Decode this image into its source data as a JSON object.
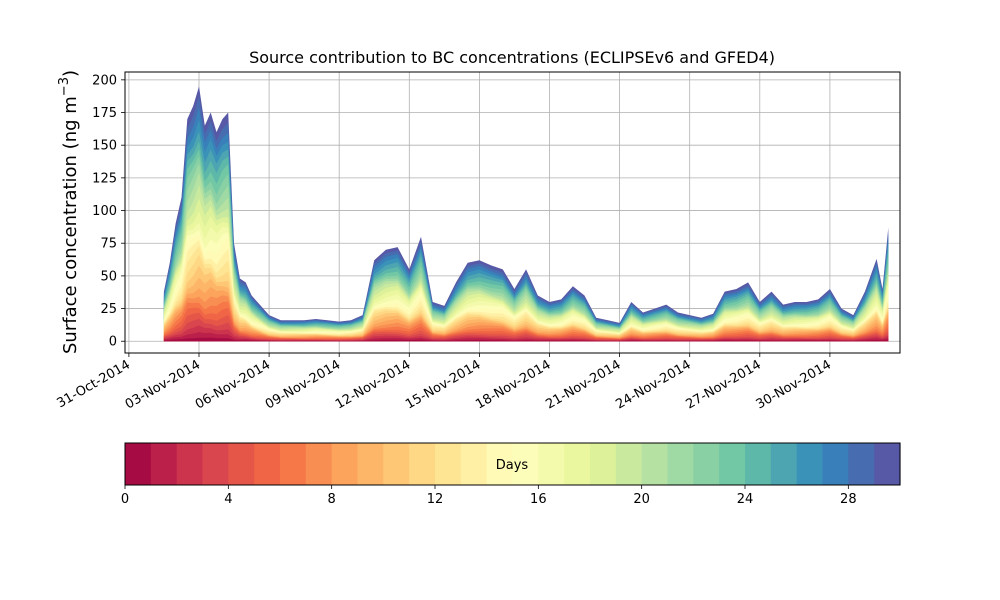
{
  "chart_data": {
    "type": "area",
    "stacked": true,
    "title": "Source contribution to BC concentrations (ECLIPSEv6 and GFED4)",
    "ylabel": "Surface concentration (ng m",
    "ylabel_superscript": "−3",
    "ylabel_close": ")",
    "ylim": [
      -9,
      206
    ],
    "yticks": [
      0,
      25,
      50,
      75,
      100,
      125,
      150,
      175,
      200
    ],
    "xticks": [
      "31-Oct-2014",
      "03-Nov-2014",
      "06-Nov-2014",
      "09-Nov-2014",
      "12-Nov-2014",
      "15-Nov-2014",
      "18-Nov-2014",
      "21-Nov-2014",
      "24-Nov-2014",
      "27-Nov-2014",
      "30-Nov-2014"
    ],
    "grid": true,
    "x_start": "2014-11-01 12:00",
    "x_end": "2014-12-02 12:00",
    "series_count": 30,
    "total_profile": {
      "time": [
        "2014-11-01 12:00",
        "2014-11-01 18:00",
        "2014-11-02 00:00",
        "2014-11-02 06:00",
        "2014-11-02 12:00",
        "2014-11-02 18:00",
        "2014-11-03 00:00",
        "2014-11-03 06:00",
        "2014-11-03 12:00",
        "2014-11-03 18:00",
        "2014-11-04 00:00",
        "2014-11-04 06:00",
        "2014-11-04 12:00",
        "2014-11-04 18:00",
        "2014-11-05 00:00",
        "2014-11-05 06:00",
        "2014-11-05 12:00",
        "2014-11-05 18:00",
        "2014-11-06 00:00",
        "2014-11-06 12:00",
        "2014-11-07 00:00",
        "2014-11-07 12:00",
        "2014-11-08 00:00",
        "2014-11-08 12:00",
        "2014-11-09 00:00",
        "2014-11-09 12:00",
        "2014-11-10 00:00",
        "2014-11-10 12:00",
        "2014-11-11 00:00",
        "2014-11-11 12:00",
        "2014-11-12 00:00",
        "2014-11-12 12:00",
        "2014-11-13 00:00",
        "2014-11-13 12:00",
        "2014-11-14 00:00",
        "2014-11-14 12:00",
        "2014-11-15 00:00",
        "2014-11-15 12:00",
        "2014-11-16 00:00",
        "2014-11-16 12:00",
        "2014-11-17 00:00",
        "2014-11-17 12:00",
        "2014-11-18 00:00",
        "2014-11-18 12:00",
        "2014-11-19 00:00",
        "2014-11-19 12:00",
        "2014-11-20 00:00",
        "2014-11-20 12:00",
        "2014-11-21 00:00",
        "2014-11-21 12:00",
        "2014-11-22 00:00",
        "2014-11-22 12:00",
        "2014-11-23 00:00",
        "2014-11-23 12:00",
        "2014-11-24 00:00",
        "2014-11-24 12:00",
        "2014-11-25 00:00",
        "2014-11-25 12:00",
        "2014-11-26 00:00",
        "2014-11-26 12:00",
        "2014-11-27 00:00",
        "2014-11-27 12:00",
        "2014-11-28 00:00",
        "2014-11-28 12:00",
        "2014-11-29 00:00",
        "2014-11-29 12:00",
        "2014-11-30 00:00",
        "2014-11-30 12:00",
        "2014-12-01 00:00",
        "2014-12-01 12:00",
        "2014-12-02 00:00",
        "2014-12-02 06:00",
        "2014-12-02 12:00"
      ],
      "value": [
        38,
        60,
        90,
        110,
        170,
        180,
        195,
        165,
        175,
        160,
        170,
        175,
        75,
        48,
        45,
        35,
        30,
        25,
        20,
        16,
        16,
        16,
        17,
        16,
        15,
        16,
        20,
        62,
        70,
        72,
        55,
        80,
        30,
        27,
        45,
        60,
        62,
        58,
        55,
        40,
        55,
        35,
        30,
        32,
        42,
        35,
        18,
        16,
        14,
        30,
        22,
        25,
        28,
        22,
        20,
        18,
        21,
        38,
        40,
        45,
        30,
        38,
        28,
        30,
        30,
        32,
        40,
        25,
        20,
        38,
        63,
        40,
        87
      ]
    },
    "colorbar": {
      "label": "Days",
      "ticks": [
        0,
        4,
        8,
        12,
        16,
        20,
        24,
        28
      ],
      "min": 0,
      "max": 30,
      "colormap": "Spectral",
      "colors": [
        "#9e0142",
        "#d53e4f",
        "#f46d43",
        "#fdae61",
        "#fee08b",
        "#ffffbf",
        "#e6f598",
        "#abdda4",
        "#66c2a5",
        "#3288bd",
        "#5e4fa2"
      ]
    }
  }
}
